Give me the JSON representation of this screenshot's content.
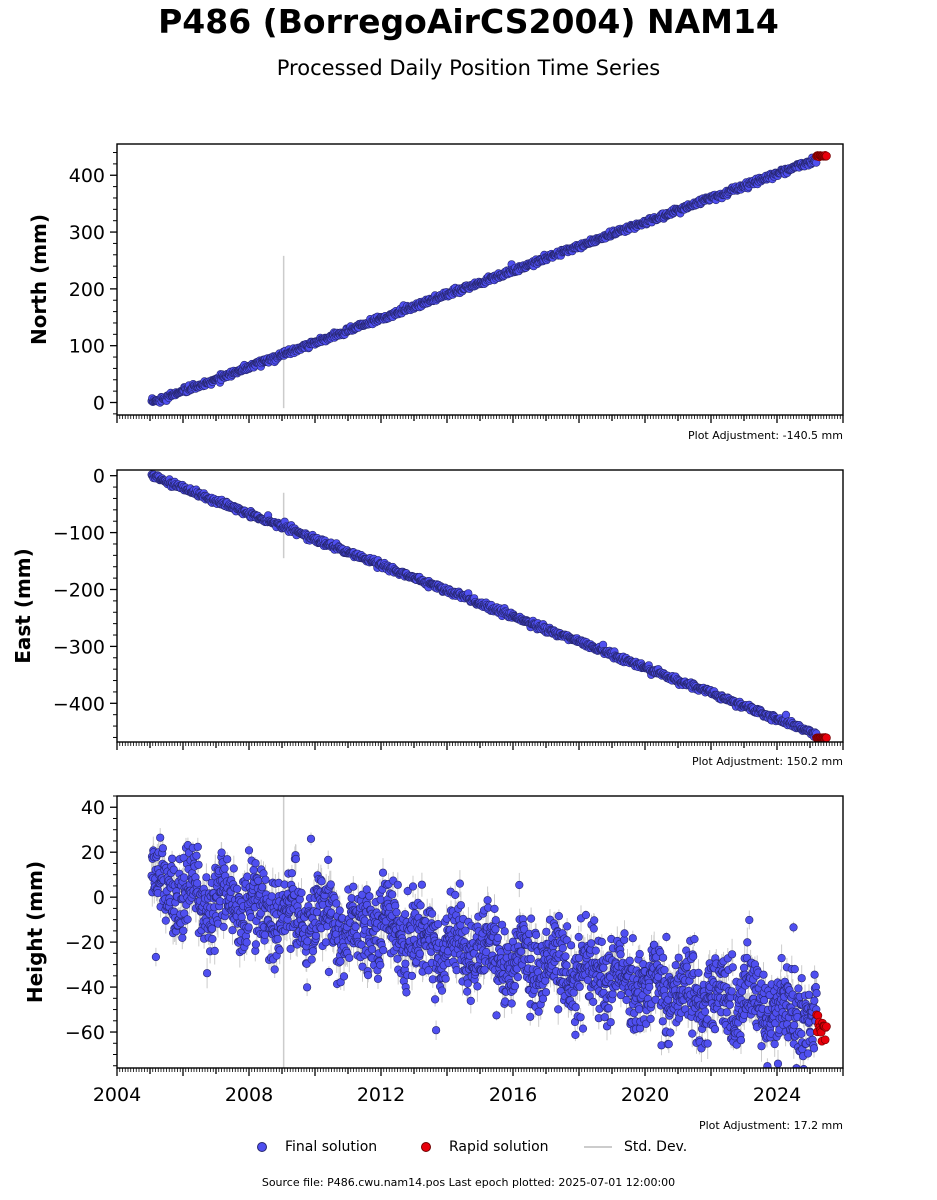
{
  "header": {
    "title": "P486 (BorregoAirCS2004) NAM14",
    "subtitle": "Processed Daily Position Time Series"
  },
  "legend": {
    "final": "Final solution",
    "rapid": "Rapid solution",
    "std": "Std. Dev."
  },
  "footer": {
    "source": "Source file: P486.cwu.nam14.pos  Last epoch plotted: 2025-07-01 12:00:00"
  },
  "colors": {
    "final": "#4f4ff0",
    "final_edge": "#26266e",
    "rapid": "#e8000b",
    "std": "#cccccc"
  },
  "chart_data": [
    {
      "type": "scatter",
      "ylabel": "North (mm)",
      "adjustment": "Plot Adjustment: -140.5 mm",
      "xlim": [
        2004.0,
        2026.0
      ],
      "ylim": [
        -22,
        455
      ],
      "yticks": [
        0,
        100,
        200,
        300,
        400
      ],
      "start": {
        "x": 2005.05,
        "y": 0
      },
      "end": {
        "x": 2025.45,
        "y": 433
      },
      "noise_mm": 2.5,
      "outlier": {
        "x": 2009.05,
        "y": 100,
        "std_low": -10,
        "std_high": 258
      },
      "rapid": {
        "x_start": 2025.2,
        "x_end": 2025.5,
        "y": 434
      }
    },
    {
      "type": "scatter",
      "ylabel": "East (mm)",
      "adjustment": "Plot Adjustment: 150.2 mm",
      "xlim": [
        2004.0,
        2026.0
      ],
      "ylim": [
        -468,
        10
      ],
      "yticks": [
        0,
        -100,
        -200,
        -300,
        -400
      ],
      "start": {
        "x": 2005.05,
        "y": 0
      },
      "end": {
        "x": 2025.45,
        "y": -460
      },
      "noise_mm": 2.5,
      "outlier": {
        "x": 2009.05,
        "y": -92,
        "std_low": -145,
        "std_high": -30
      },
      "rapid": {
        "x_start": 2025.2,
        "x_end": 2025.5,
        "y": -461
      }
    },
    {
      "type": "scatter",
      "ylabel": "Height (mm)",
      "adjustment": "Plot Adjustment: 17.2 mm",
      "xlim": [
        2004.0,
        2026.0
      ],
      "ylim": [
        -76,
        45
      ],
      "yticks": [
        40,
        20,
        0,
        -20,
        -40,
        -60
      ],
      "xticks": [
        2004,
        2008,
        2012,
        2016,
        2020,
        2024
      ],
      "start": {
        "x": 2005.05,
        "y": 5
      },
      "end": {
        "x": 2025.45,
        "y": -55
      },
      "noise_mm": 9,
      "outlier": {
        "x": 2009.05,
        "y": -5,
        "std_low": -76,
        "std_high": 45
      },
      "rapid": {
        "x_start": 2025.2,
        "x_end": 2025.5,
        "y": -58,
        "spread": 6
      }
    }
  ]
}
